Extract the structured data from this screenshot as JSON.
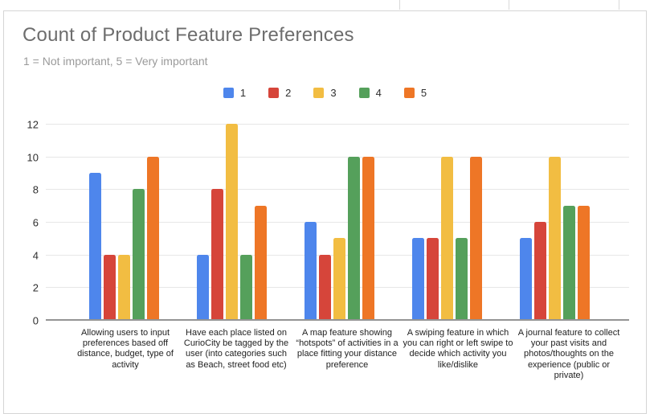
{
  "chart": {
    "title": "Count of Product Feature Preferences",
    "subtitle": "1 = Not important, 5 = Very important"
  },
  "chart_data": {
    "type": "bar",
    "title": "Count of Product Feature Preferences",
    "subtitle": "1 = Not important, 5 = Very important",
    "categories": [
      "Allowing users to input preferences based off distance, budget, type of activity",
      "Have each place listed on CurioCity be tagged by the user (into categories such as Beach, street food etc)",
      "A map feature showing “hotspots” of activities in a place fitting your distance preference",
      "A swiping feature in which you can right or left swipe to decide which activity you like/dislike",
      "A journal feature to collect your past visits and photos/thoughts on the experience (public or private)"
    ],
    "series": [
      {
        "name": "1",
        "color": "#4e86ec",
        "values": [
          9,
          4,
          6,
          5,
          5
        ]
      },
      {
        "name": "2",
        "color": "#d6453a",
        "values": [
          4,
          8,
          4,
          5,
          6
        ]
      },
      {
        "name": "3",
        "color": "#f2bd42",
        "values": [
          4,
          12,
          5,
          10,
          10
        ]
      },
      {
        "name": "4",
        "color": "#55a05b",
        "values": [
          8,
          4,
          10,
          5,
          7
        ]
      },
      {
        "name": "5",
        "color": "#ee7626",
        "values": [
          10,
          7,
          10,
          10,
          7
        ]
      }
    ],
    "ylim": [
      0,
      12
    ],
    "yticks": [
      0,
      2,
      4,
      6,
      8,
      10,
      12
    ],
    "grid": true,
    "legend_position": "top",
    "colors": {
      "gridline": "#e7e7e7",
      "baseline": "#949494",
      "title_text": "#6d6d6d",
      "subtitle_text": "#9a9a9a",
      "axis_text": "#2e2e2e",
      "card_border": "#d5d5d5"
    }
  }
}
